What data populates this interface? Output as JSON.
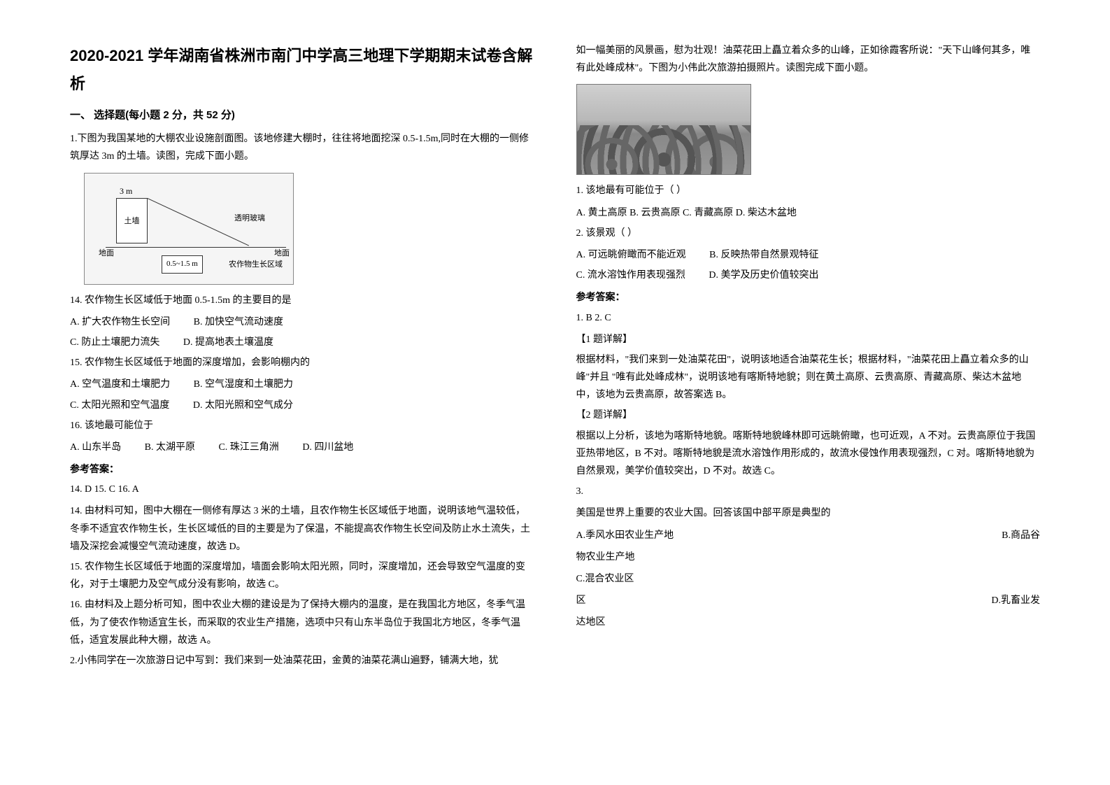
{
  "title": "2020-2021 学年湖南省株洲市南门中学高三地理下学期期末试卷含解析",
  "section1": {
    "header": "一、 选择题(每小题 2 分，共 52 分)"
  },
  "q1": {
    "intro": "1.下图为我国某地的大棚农业设施剖面图。该地修建大棚时，往往将地面挖深 0.5-1.5m,同时在大棚的一侧修筑厚达 3m 的土墙。读图，完成下面小题。",
    "diagram": {
      "wall_height": "3 m",
      "wall_label": "土墙",
      "glass": "透明玻璃",
      "ground": "地面",
      "depth": "0.5~1.5 m",
      "grow_zone": "农作物生长区域"
    },
    "sub14": {
      "stem": "14. 农作物生长区域低于地面 0.5-1.5m 的主要目的是",
      "a": "A. 扩大农作物生长空间",
      "b": "B. 加快空气流动速度",
      "c": "C. 防止土壤肥力流失",
      "d": "D. 提高地表土壤温度"
    },
    "sub15": {
      "stem": "15. 农作物生长区域低于地面的深度增加，会影响棚内的",
      "a": "A. 空气温度和土壤肥力",
      "b": "B. 空气湿度和土壤肥力",
      "c": "C. 太阳光照和空气温度",
      "d": "D. 太阳光照和空气成分"
    },
    "sub16": {
      "stem": "16. 该地最可能位于",
      "a": "A. 山东半岛",
      "b": "B. 太湖平原",
      "c": "C. 珠江三角洲",
      "d": "D. 四川盆地"
    },
    "answer_header": "参考答案：",
    "answers": "14. D        15. C        16. A",
    "explain14": "14. 由材料可知，图中大棚在一侧修有厚达 3 米的土墙，且农作物生长区域低于地面，说明该地气温较低，冬季不适宜农作物生长，生长区域低的目的主要是为了保温，不能提高农作物生长空间及防止水土流失，土墙及深挖会减慢空气流动速度，故选 D。",
    "explain15": "15. 农作物生长区域低于地面的深度增加，墙面会影响太阳光照，同时，深度增加，还会导致空气温度的变化，对于土壤肥力及空气成分没有影响，故选 C。",
    "explain16": "16. 由材料及上题分析可知，图中农业大棚的建设是为了保持大棚内的温度，是在我国北方地区，冬季气温低，为了使农作物适宜生长，而采取的农业生产措施，选项中只有山东半岛位于我国北方地区，冬季气温低，适宜发展此种大棚，故选 A。"
  },
  "q2": {
    "intro1": "2.小伟同学在一次旅游日记中写到：我们来到一处油菜花田，金黄的油菜花满山遍野，铺满大地，犹",
    "intro2": "如一幅美丽的风景画，慰为壮观！油菜花田上矗立着众多的山峰，正如徐霞客所说：\"天下山峰何其多，唯有此处峰成林\"。下图为小伟此次旅游拍摄照片。读图完成下面小题。",
    "sub1": {
      "stem": "1. 该地最有可能位于（        ）",
      "options": "A. 黄土高原  B. 云贵高原  C. 青藏高原  D. 柴达木盆地"
    },
    "sub2": {
      "stem": "2. 该景观（        ）",
      "a": "A. 可远眺俯瞰而不能近观",
      "b": "B. 反映热带自然景观特征",
      "c": "C. 流水溶蚀作用表现强烈",
      "d": "D. 美学及历史价值较突出"
    },
    "answer_header": "参考答案：",
    "answers": "1. B         2. C",
    "detail1_header": "【1 题详解】",
    "detail1": "根据材料，\"我们来到一处油菜花田\"，说明该地适合油菜花生长；根据材料，\"油菜花田上矗立着众多的山峰\"并且 \"唯有此处峰成林\"，说明该地有喀斯特地貌；则在黄土高原、云贵高原、青藏高原、柴达木盆地中，该地为云贵高原，故答案选 B。",
    "detail2_header": "【2 题详解】",
    "detail2": "根据以上分析，该地为喀斯特地貌。喀斯特地貌峰林即可远眺俯瞰，也可近观，A 不对。云贵高原位于我国亚热带地区，B 不对。喀斯特地貌是流水溶蚀作用形成的，故流水侵蚀作用表现强烈，C 对。喀斯特地貌为自然景观，美学价值较突出，D 不对。故选 C。"
  },
  "q3": {
    "num": "3.",
    "stem": "美国是世界上重要的农业大国。回答该国中部平原是典型的",
    "a": "A.季风水田农业生产地",
    "b": "B.商品谷物农业生产地",
    "c": "C.混合农业区",
    "d": "D.乳畜业发达地区"
  }
}
